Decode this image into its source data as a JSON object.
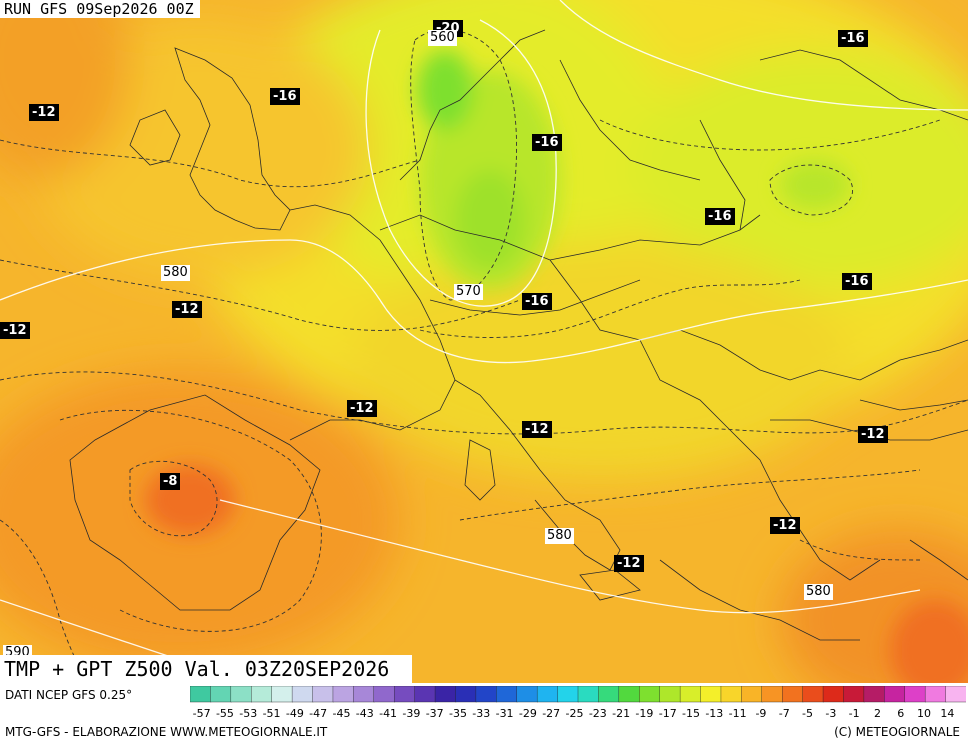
{
  "header": {
    "run": "RUN GFS 09Sep2026 00Z"
  },
  "title": "TMP + GPT Z500 Val. 03Z20SEP2026",
  "footer": {
    "source": "DATI NCEP GFS 0.25°",
    "credit_left": "MTG-GFS - ELABORAZIONE WWW.METEOGIORNALE.IT",
    "credit_right": "(C) METEOGIORNALE"
  },
  "temperature_labels": [
    {
      "id": "t-top-right",
      "value": "-16"
    },
    {
      "id": "t-uk",
      "value": "-12"
    },
    {
      "id": "t-ireland",
      "value": "-16"
    },
    {
      "id": "t-germany",
      "value": "-16"
    },
    {
      "id": "t-north-sea",
      "value": "-20"
    },
    {
      "id": "t-poland",
      "value": "-16"
    },
    {
      "id": "t-ukraine",
      "value": "-16"
    },
    {
      "id": "t-alps",
      "value": "-16"
    },
    {
      "id": "t-biscay",
      "value": "-12"
    },
    {
      "id": "t-france",
      "value": "-12"
    },
    {
      "id": "t-tyrrhenian",
      "value": "-12"
    },
    {
      "id": "t-black-sea",
      "value": "-12"
    },
    {
      "id": "t-spain",
      "value": "-8"
    },
    {
      "id": "t-greece",
      "value": "-12"
    },
    {
      "id": "t-ionian",
      "value": "-12"
    },
    {
      "id": "t-left-edge",
      "value": "-12"
    }
  ],
  "gpt_labels": [
    {
      "id": "g-560",
      "value": "560"
    },
    {
      "id": "g-580-west",
      "value": "580"
    },
    {
      "id": "g-570",
      "value": "570"
    },
    {
      "id": "g-580-south",
      "value": "580"
    },
    {
      "id": "g-580-aegean",
      "value": "580"
    },
    {
      "id": "g-590",
      "value": "590"
    }
  ],
  "color_scale": {
    "values": [
      "-57",
      "-55",
      "-53",
      "-51",
      "-49",
      "-47",
      "-45",
      "-43",
      "-41",
      "-39",
      "-37",
      "-35",
      "-33",
      "-31",
      "-29",
      "-27",
      "-25",
      "-23",
      "-21",
      "-19",
      "-17",
      "-15",
      "-13",
      "-11",
      "-9",
      "-7",
      "-5",
      "-3",
      "-1",
      "2",
      "6",
      "10",
      "14"
    ],
    "colors": [
      "#3fc9a0",
      "#63d5b3",
      "#8ce0c6",
      "#b5ebd9",
      "#d4f0ec",
      "#cfd9ef",
      "#c8c0ea",
      "#bba4e2",
      "#a787d8",
      "#9068cc",
      "#764cbf",
      "#5a35b2",
      "#3a24a6",
      "#2a2fb6",
      "#2245c8",
      "#1f67d8",
      "#1e8ee6",
      "#1fb4f0",
      "#23d3ea",
      "#2adbc0",
      "#36da7c",
      "#52d93e",
      "#7ee02f",
      "#aee72a",
      "#d8ee2a",
      "#f4ef2a",
      "#f8d52a",
      "#f9b427",
      "#f79424",
      "#f2721f",
      "#ea4d1c",
      "#dd2a1a",
      "#c81a38",
      "#b51c66",
      "#c624a0",
      "#dd40c8",
      "#f07ae0",
      "#f8b4f0"
    ]
  }
}
